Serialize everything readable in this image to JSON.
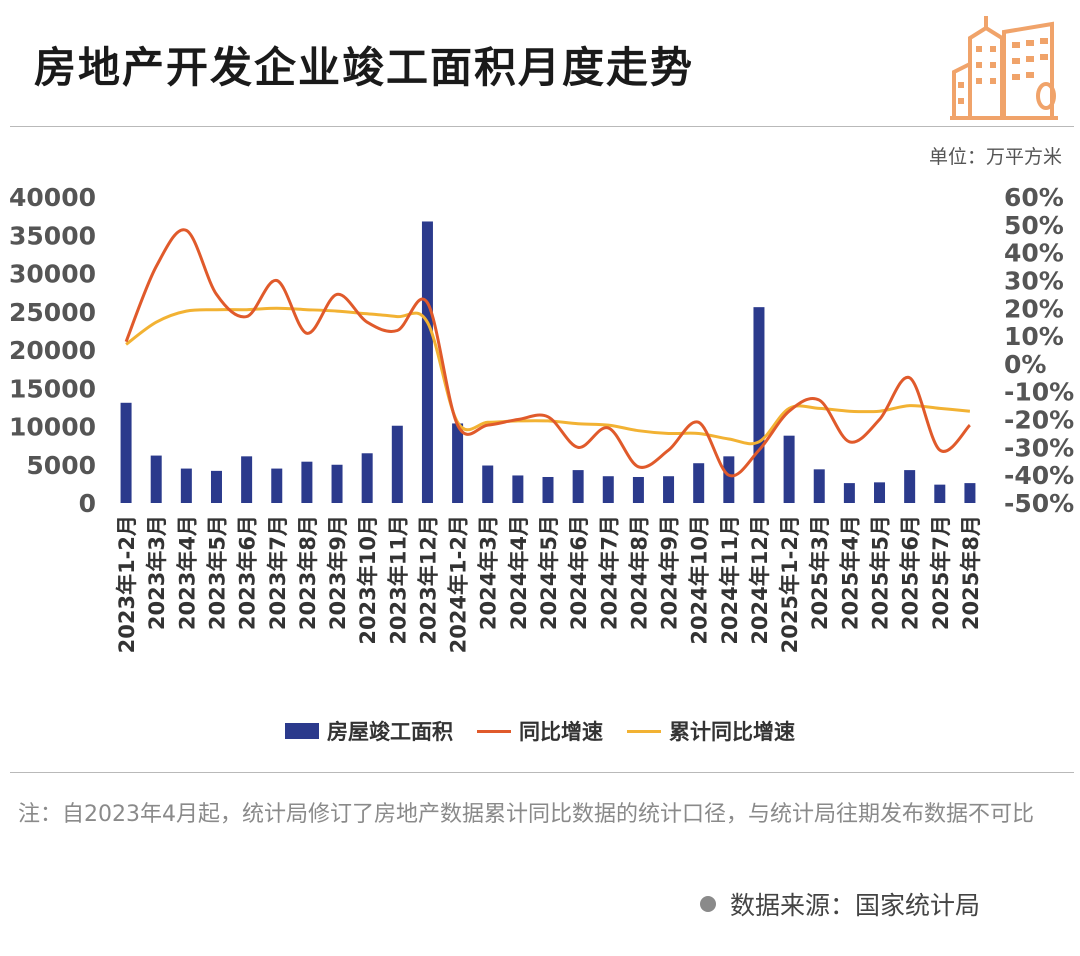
{
  "header": {
    "title": "房地产开发企业竣工面积月度走势",
    "unit": "单位：万平方米",
    "logo_icon": "building-logo-icon",
    "logo_color": "#f0a36a"
  },
  "note": "注：自2023年4月起，统计局修订了房地产数据累计同比数据的统计口径，与统计局往期发布数据不可比",
  "source": "数据来源：国家统计局",
  "chart_data": {
    "type": "bar",
    "title": "房地产开发企业竣工面积月度走势",
    "categories": [
      "2023年1-2月",
      "2023年3月",
      "2023年4月",
      "2023年5月",
      "2023年6月",
      "2023年7月",
      "2023年8月",
      "2023年9月",
      "2023年10月",
      "2023年11月",
      "2023年12月",
      "2024年1-2月",
      "2024年3月",
      "2024年4月",
      "2024年5月",
      "2024年6月",
      "2024年7月",
      "2024年8月",
      "2024年9月",
      "2024年10月",
      "2024年11月",
      "2024年12月",
      "2025年1-2月",
      "2025年3月",
      "2025年4月",
      "2025年5月",
      "2025年6月",
      "2025年7月",
      "2025年8月"
    ],
    "left_axis": {
      "ylim": [
        0,
        40000
      ],
      "ticks": [
        "0",
        "5000",
        "10000",
        "15000",
        "20000",
        "25000",
        "30000",
        "35000",
        "40000"
      ]
    },
    "right_axis": {
      "ylim": [
        -50,
        60
      ],
      "ticks": [
        "-50%",
        "-40%",
        "-30%",
        "-20%",
        "-10%",
        "0%",
        "10%",
        "20%",
        "30%",
        "40%",
        "50%",
        "60%"
      ]
    },
    "series": [
      {
        "name": "房屋竣工面积",
        "type": "bar",
        "axis": "left",
        "color": "#2b3a8c",
        "values": [
          13100,
          6200,
          4500,
          4200,
          6100,
          4500,
          5400,
          5000,
          6500,
          10100,
          36800,
          10400,
          4900,
          3600,
          3400,
          4300,
          3500,
          3400,
          3500,
          5200,
          6100,
          25600,
          8800,
          4400,
          2600,
          2700,
          4300,
          2400,
          2600
        ]
      },
      {
        "name": "同比增速",
        "type": "line",
        "axis": "right",
        "color": "#e05a2b",
        "values": [
          8,
          35,
          48,
          25,
          17,
          30,
          11,
          25,
          15,
          12,
          22,
          -22,
          -22,
          -20,
          -19,
          -30,
          -23,
          -37,
          -31,
          -21,
          -40,
          -31,
          -17,
          -13,
          -28,
          -20,
          -5,
          -31,
          -22
        ]
      },
      {
        "name": "累计同比增速",
        "type": "line",
        "axis": "right",
        "color": "#f2b233",
        "values": [
          7,
          15,
          19,
          19.5,
          19.5,
          20,
          19.5,
          19,
          18,
          17,
          15,
          -21,
          -21,
          -20.5,
          -20.5,
          -21.5,
          -22,
          -24,
          -25,
          -25,
          -27,
          -28,
          -16,
          -16,
          -17,
          -17,
          -15,
          -16,
          -17
        ]
      }
    ]
  }
}
